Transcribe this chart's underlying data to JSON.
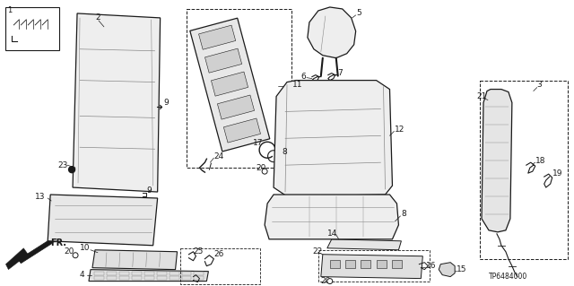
{
  "background": "#ffffff",
  "lc": "#1a1a1a",
  "gc": "#888888",
  "part_number": "TP6484000",
  "fig_w": 6.4,
  "fig_h": 3.19,
  "dpi": 100,
  "ylim": [
    319,
    0
  ],
  "xlim": [
    0,
    640
  ]
}
